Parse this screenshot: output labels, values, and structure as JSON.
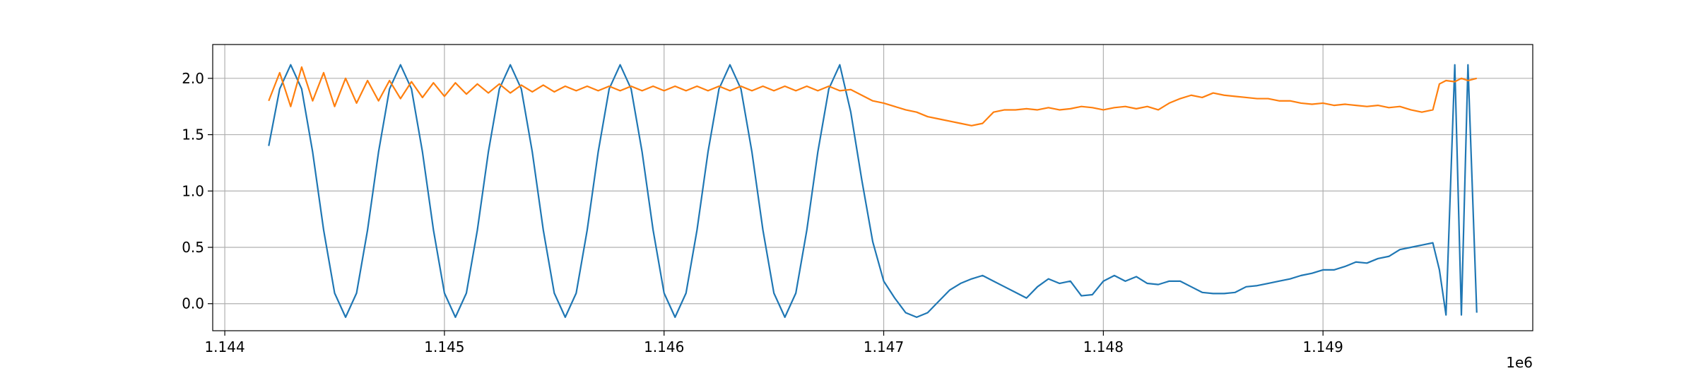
{
  "chart_data": {
    "type": "line",
    "x": [
      1144200,
      1144250,
      1144300,
      1144350,
      1144400,
      1144450,
      1144500,
      1144550,
      1144600,
      1144650,
      1144700,
      1144750,
      1144800,
      1144850,
      1144900,
      1144950,
      1145000,
      1145050,
      1145100,
      1145150,
      1145200,
      1145250,
      1145300,
      1145350,
      1145400,
      1145450,
      1145500,
      1145550,
      1145600,
      1145650,
      1145700,
      1145750,
      1145800,
      1145850,
      1145900,
      1145950,
      1146000,
      1146050,
      1146100,
      1146150,
      1146200,
      1146250,
      1146300,
      1146350,
      1146400,
      1146450,
      1146500,
      1146550,
      1146600,
      1146650,
      1146700,
      1146750,
      1146800,
      1146850,
      1146900,
      1146950,
      1147000,
      1147050,
      1147100,
      1147150,
      1147200,
      1147250,
      1147300,
      1147350,
      1147400,
      1147450,
      1147500,
      1147550,
      1147600,
      1147650,
      1147700,
      1147750,
      1147800,
      1147850,
      1147900,
      1147950,
      1148000,
      1148050,
      1148100,
      1148150,
      1148200,
      1148250,
      1148300,
      1148350,
      1148400,
      1148450,
      1148500,
      1148550,
      1148600,
      1148650,
      1148700,
      1148750,
      1148800,
      1148850,
      1148900,
      1148950,
      1149000,
      1149050,
      1149100,
      1149150,
      1149200,
      1149250,
      1149300,
      1149350,
      1149400,
      1149450,
      1149500,
      1149530,
      1149560,
      1149600,
      1149630,
      1149660,
      1149700
    ],
    "series": [
      {
        "color": "#1f77b4",
        "values": [
          1.4,
          1.906,
          2.12,
          1.906,
          1.346,
          0.654,
          0.094,
          -0.12,
          0.094,
          0.654,
          1.346,
          1.906,
          2.12,
          1.906,
          1.346,
          0.654,
          0.094,
          -0.12,
          0.094,
          0.654,
          1.346,
          1.906,
          2.12,
          1.906,
          1.346,
          0.654,
          0.094,
          -0.12,
          0.094,
          0.654,
          1.346,
          1.906,
          2.12,
          1.906,
          1.346,
          0.654,
          0.094,
          -0.12,
          0.094,
          0.654,
          1.346,
          1.906,
          2.12,
          1.906,
          1.346,
          0.654,
          0.094,
          -0.12,
          0.094,
          0.654,
          1.346,
          1.906,
          2.12,
          1.7,
          1.1,
          0.55,
          0.2,
          0.05,
          -0.08,
          -0.12,
          -0.08,
          0.02,
          0.12,
          0.18,
          0.22,
          0.25,
          0.2,
          0.15,
          0.1,
          0.05,
          0.15,
          0.22,
          0.18,
          0.2,
          0.07,
          0.08,
          0.2,
          0.25,
          0.2,
          0.24,
          0.18,
          0.17,
          0.2,
          0.2,
          0.15,
          0.1,
          0.09,
          0.09,
          0.1,
          0.15,
          0.16,
          0.18,
          0.2,
          0.22,
          0.25,
          0.27,
          0.3,
          0.3,
          0.33,
          0.37,
          0.36,
          0.4,
          0.42,
          0.48,
          0.5,
          0.52,
          0.54,
          0.3,
          -0.1,
          2.12,
          -0.1,
          2.12,
          -0.08
        ]
      },
      {
        "color": "#ff7f0e",
        "values": [
          1.8,
          2.05,
          1.75,
          2.1,
          1.8,
          2.05,
          1.75,
          2.0,
          1.78,
          1.98,
          1.8,
          1.98,
          1.82,
          1.97,
          1.83,
          1.96,
          1.84,
          1.96,
          1.86,
          1.95,
          1.87,
          1.95,
          1.87,
          1.94,
          1.88,
          1.94,
          1.88,
          1.93,
          1.89,
          1.93,
          1.89,
          1.93,
          1.89,
          1.93,
          1.89,
          1.93,
          1.89,
          1.93,
          1.89,
          1.93,
          1.89,
          1.93,
          1.89,
          1.93,
          1.89,
          1.93,
          1.89,
          1.93,
          1.89,
          1.93,
          1.89,
          1.93,
          1.89,
          1.9,
          1.85,
          1.8,
          1.78,
          1.75,
          1.72,
          1.7,
          1.66,
          1.64,
          1.62,
          1.6,
          1.58,
          1.6,
          1.7,
          1.72,
          1.72,
          1.73,
          1.72,
          1.74,
          1.72,
          1.73,
          1.75,
          1.74,
          1.72,
          1.74,
          1.75,
          1.73,
          1.75,
          1.72,
          1.78,
          1.82,
          1.85,
          1.83,
          1.87,
          1.85,
          1.84,
          1.83,
          1.82,
          1.82,
          1.8,
          1.8,
          1.78,
          1.77,
          1.78,
          1.76,
          1.77,
          1.76,
          1.75,
          1.76,
          1.74,
          1.75,
          1.72,
          1.7,
          1.72,
          1.95,
          1.98,
          1.97,
          2.0,
          1.98,
          2.0
        ]
      }
    ],
    "xlim": [
      1143945,
      1149955
    ],
    "ylim": [
      -0.24,
      2.3
    ],
    "xticks": [
      {
        "value": 1144000,
        "label": "1.144"
      },
      {
        "value": 1145000,
        "label": "1.145"
      },
      {
        "value": 1146000,
        "label": "1.146"
      },
      {
        "value": 1147000,
        "label": "1.147"
      },
      {
        "value": 1148000,
        "label": "1.148"
      },
      {
        "value": 1149000,
        "label": "1.149"
      }
    ],
    "yticks": [
      {
        "value": 0,
        "label": "0.0"
      },
      {
        "value": 0.5,
        "label": "0.5"
      },
      {
        "value": 1,
        "label": "1.0"
      },
      {
        "value": 1.5,
        "label": "1.5"
      },
      {
        "value": 2,
        "label": "2.0"
      }
    ],
    "x_offset_label": "1e6",
    "grid": true
  }
}
